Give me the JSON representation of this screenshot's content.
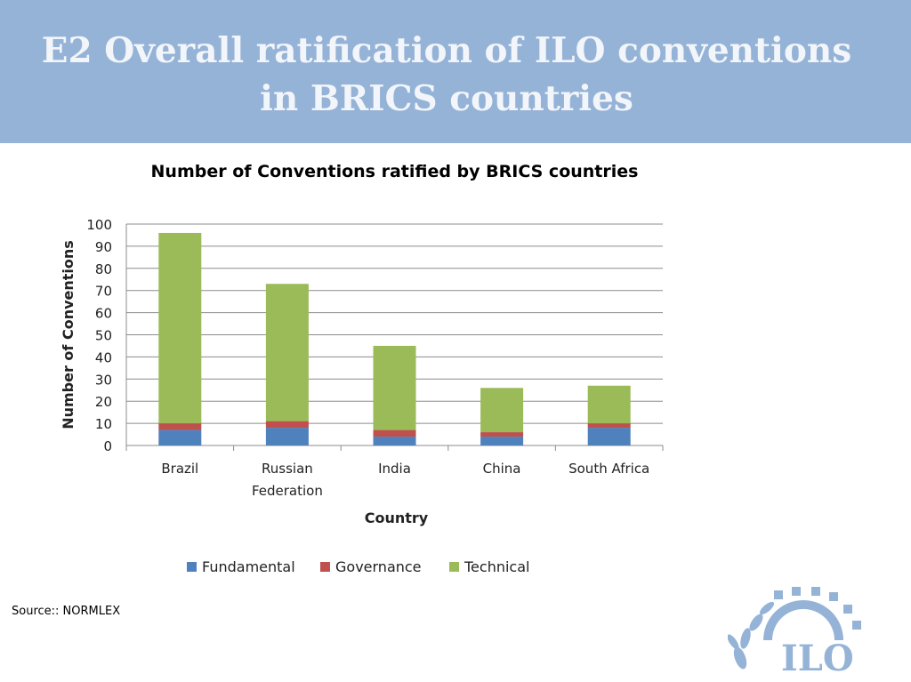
{
  "slide": {
    "title_line1": "E2  Overall ratification of ILO conventions",
    "title_line2": "in BRICS countries",
    "source": "Source:: NORMLEX",
    "logo_text": "ILO"
  },
  "colors": {
    "banner": "#95b3d7",
    "fundamental": "#4f81bd",
    "governance": "#c0504d",
    "technical": "#9bbb59"
  },
  "chart_data": {
    "type": "bar",
    "stacked": true,
    "title": "Number of Conventions ratified by BRICS countries",
    "xlabel": "Country",
    "ylabel": "Number of Conventions",
    "categories": [
      "Brazil",
      "Russian Federation",
      "India",
      "China",
      "South Africa"
    ],
    "category_lines": [
      [
        "Brazil"
      ],
      [
        "Russian",
        "Federation"
      ],
      [
        "India"
      ],
      [
        "China"
      ],
      [
        "South Africa"
      ]
    ],
    "series": [
      {
        "name": "Fundamental",
        "color": "#4f81bd",
        "values": [
          7,
          8,
          4,
          4,
          8
        ]
      },
      {
        "name": "Governance",
        "color": "#c0504d",
        "values": [
          3,
          3,
          3,
          2,
          2
        ]
      },
      {
        "name": "Technical",
        "color": "#9bbb59",
        "values": [
          86,
          62,
          38,
          20,
          17
        ]
      }
    ],
    "ylim": [
      0,
      100
    ],
    "yticks": [
      0,
      10,
      20,
      30,
      40,
      50,
      60,
      70,
      80,
      90,
      100
    ],
    "grid": true,
    "legend_position": "bottom"
  }
}
